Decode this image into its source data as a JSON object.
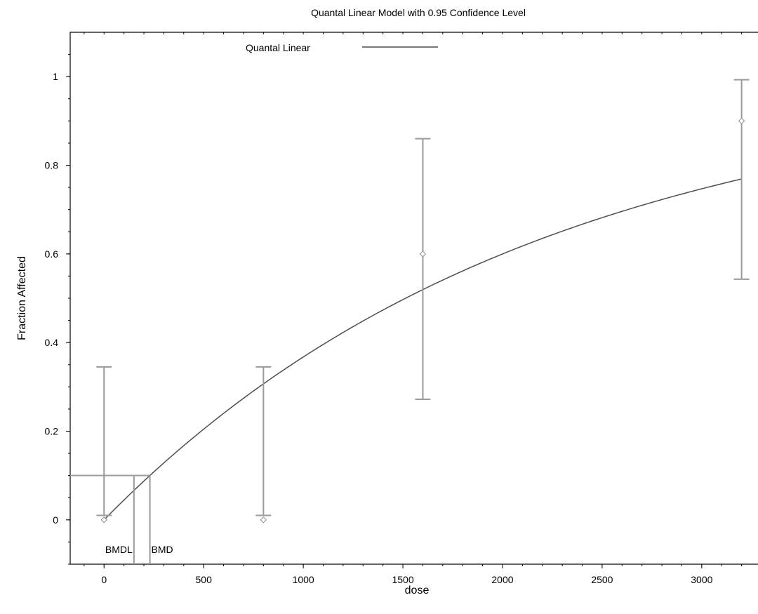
{
  "chart_data": {
    "type": "line",
    "title": "Quantal Linear Model with 0.95 Confidence Level",
    "xlabel": "dose",
    "ylabel": "Fraction Affected",
    "xlim": [
      -170,
      3300
    ],
    "ylim": [
      -0.1,
      1.1
    ],
    "x_ticks": [
      0,
      500,
      1000,
      1500,
      2000,
      2500,
      3000
    ],
    "y_ticks": [
      0,
      0.2,
      0.4,
      0.6,
      0.8,
      1
    ],
    "x_tick_labels": [
      "0",
      "500",
      "1000",
      "1500",
      "2000",
      "2500",
      "3000"
    ],
    "y_tick_labels": [
      "0",
      "0.2",
      "0.4",
      "0.6",
      "0.8",
      "1"
    ],
    "legend": {
      "label": "Quantal Linear",
      "placement": "top-center"
    },
    "model": {
      "name": "Quantal Linear",
      "background": 0,
      "slope": 0.000458,
      "x_start": 0,
      "x_end": 3200,
      "color": "#4d4d4d"
    },
    "observations": [
      {
        "x": 0,
        "y": 0,
        "lower": 0.01,
        "upper": 0.345
      },
      {
        "x": 800,
        "y": 0,
        "lower": 0.01,
        "upper": 0.345
      },
      {
        "x": 1600,
        "y": 0.6,
        "lower": 0.272,
        "upper": 0.86
      },
      {
        "x": 3200,
        "y": 0.9,
        "lower": 0.543,
        "upper": 0.993
      }
    ],
    "benchmark": {
      "bmr": 0.1,
      "bmd": 230,
      "bmdl": 150,
      "bmd_label": "BMD",
      "bmdl_label": "BMDL"
    },
    "errorbar_color": "#9a9a9a",
    "grid": false
  }
}
